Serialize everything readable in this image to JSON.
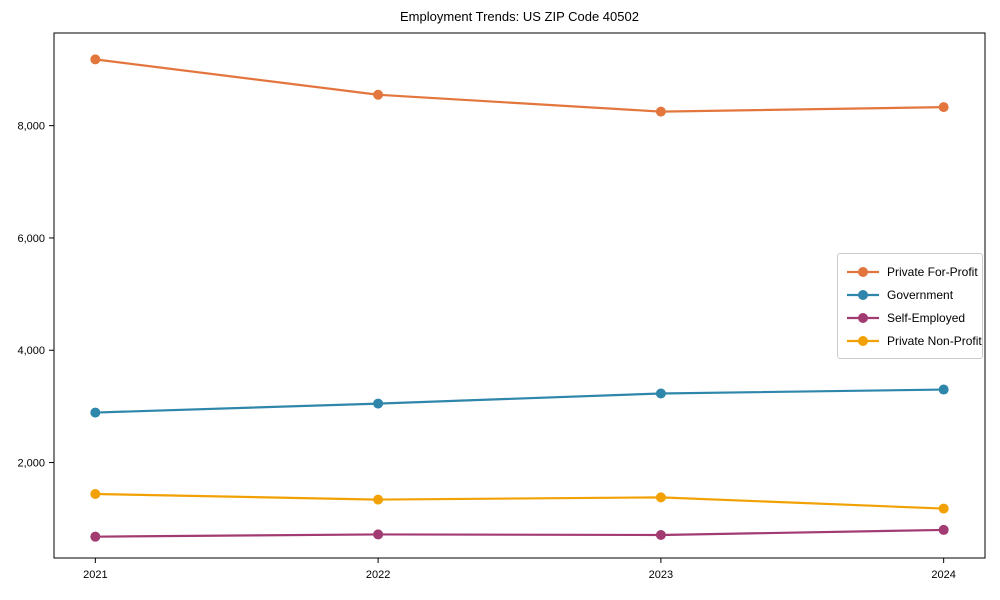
{
  "chart_data": {
    "type": "line",
    "title": "Employment Trends: US ZIP Code 40502",
    "categories": [
      "2021",
      "2022",
      "2023",
      "2024"
    ],
    "series": [
      {
        "name": "Private For-Profit",
        "color": "#E2763C",
        "values": [
          9180,
          8550,
          8250,
          8330
        ]
      },
      {
        "name": "Government",
        "color": "#2E86AB",
        "values": [
          2890,
          3050,
          3230,
          3300
        ]
      },
      {
        "name": "Self-Employed",
        "color": "#A23B72",
        "values": [
          680,
          720,
          710,
          800
        ]
      },
      {
        "name": "Private Non-Profit",
        "color": "#F2A104",
        "values": [
          1440,
          1340,
          1380,
          1180
        ]
      }
    ],
    "xlabel": "",
    "ylabel": "",
    "ylim": [
      300,
      9650
    ],
    "yticks": [
      2000,
      4000,
      6000,
      8000
    ],
    "ytick_labels": [
      "2,000",
      "4,000",
      "6,000",
      "8,000"
    ],
    "grid": false,
    "legend_position": "center-right",
    "marker": "circle",
    "axis_color": "#000000",
    "background": "#ffffff"
  }
}
